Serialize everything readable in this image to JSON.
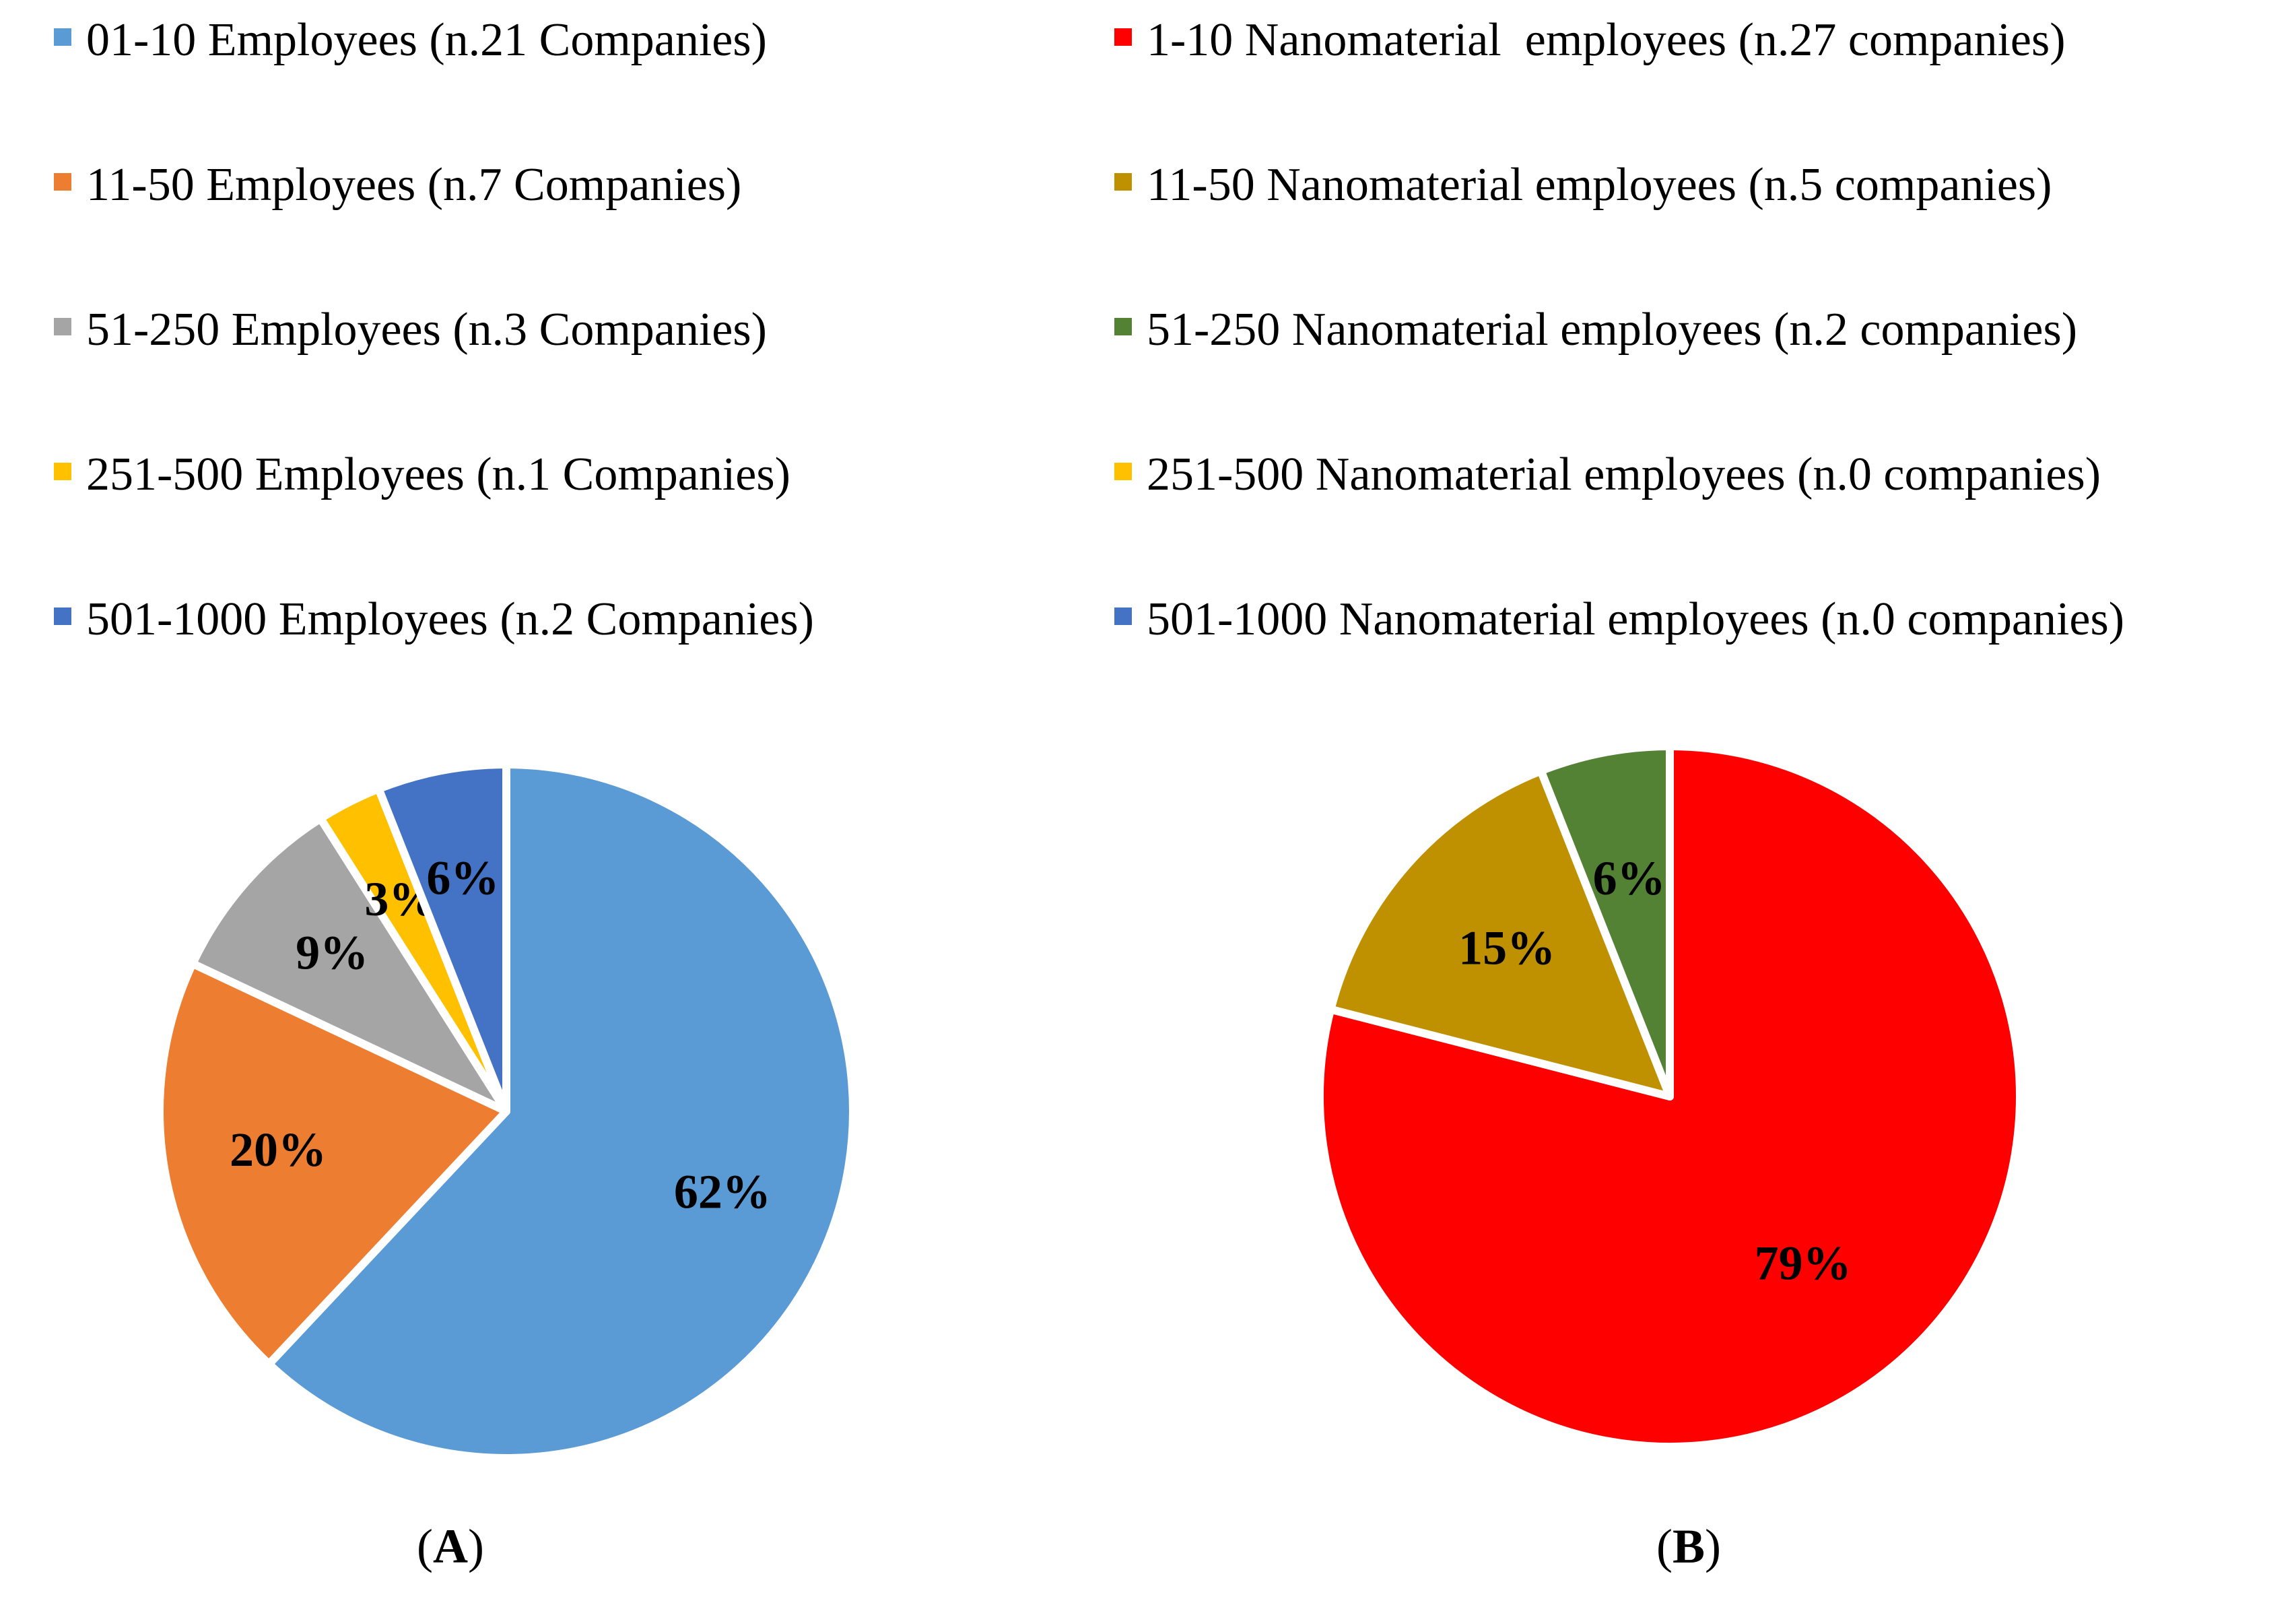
{
  "chart_data": [
    {
      "type": "pie",
      "panel": "A",
      "start": "top, clockwise",
      "slices": [
        {
          "label": "01-10 Employees (n.21 Companies)",
          "value": 62,
          "value_label": "62%",
          "color": "#5b9bd5"
        },
        {
          "label": "11-50 Employees (n.7 Companies)",
          "value": 20,
          "value_label": "20%",
          "color": "#ed7d31"
        },
        {
          "label": "51-250 Employees (n.3 Companies)",
          "value": 9,
          "value_label": "9%",
          "color": "#a5a5a5"
        },
        {
          "label": "251-500 Employees (n.1 Companies)",
          "value": 3,
          "value_label": "3%",
          "color": "#ffc000"
        },
        {
          "label": "501-1000 Employees (n.2 Companies)",
          "value": 6,
          "value_label": "6%",
          "color": "#4472c4"
        }
      ]
    },
    {
      "type": "pie",
      "panel": "B",
      "start": "top, clockwise",
      "slices": [
        {
          "label": "1-10 Nanomaterial  employees (n.27 companies)",
          "value": 79,
          "value_label": "79%",
          "color": "#ff0000"
        },
        {
          "label": "11-50 Nanomaterial employees (n.5 companies)",
          "value": 15,
          "value_label": "15%",
          "color": "#bf9000"
        },
        {
          "label": "51-250 Nanomaterial employees (n.2 companies)",
          "value": 6,
          "value_label": "6%",
          "color": "#548235"
        },
        {
          "label": "251-500 Nanomaterial employees (n.0 companies)",
          "value": 0,
          "value_label": "",
          "color": "#ffc000"
        },
        {
          "label": "501-1000 Nanomaterial employees (n.0 companies)",
          "value": 0,
          "value_label": "",
          "color": "#4472c4"
        }
      ]
    }
  ],
  "panels": {
    "a": {
      "open": "(",
      "letter": "A",
      "close": ")"
    },
    "b": {
      "open": "(",
      "letter": "B",
      "close": ")"
    }
  }
}
